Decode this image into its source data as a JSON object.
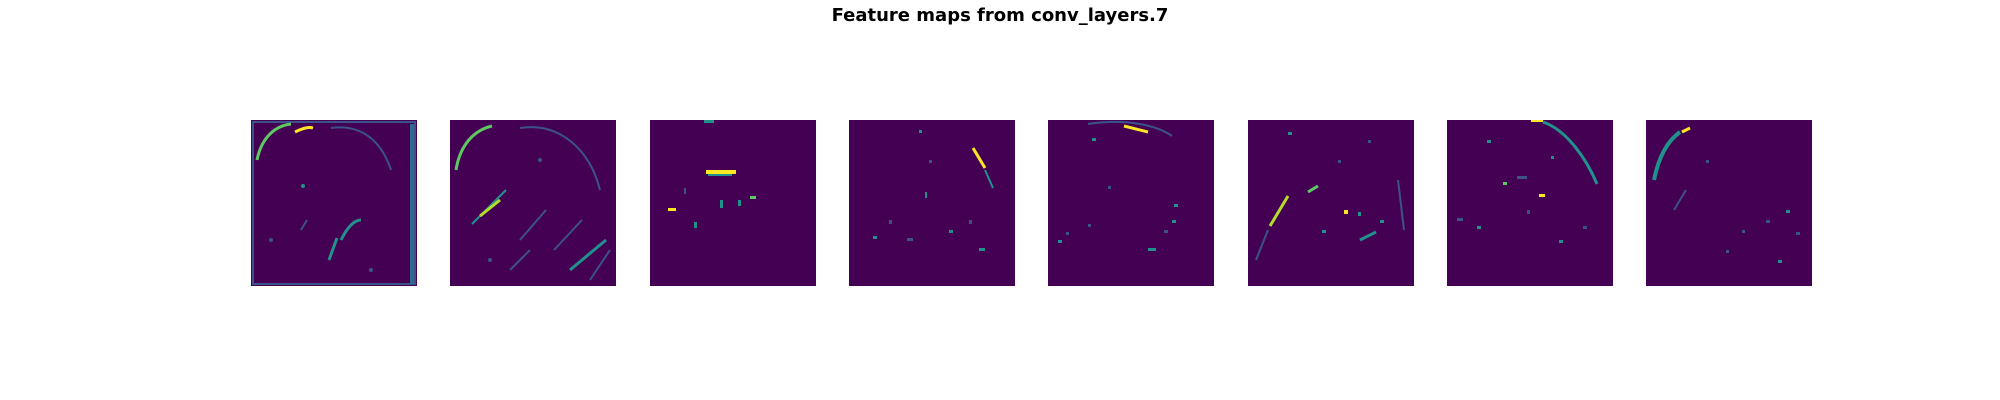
{
  "figure": {
    "title": "Feature maps from conv_layers.7"
  },
  "colormap": {
    "name": "viridis",
    "background": "#440154",
    "low": "#3b528b",
    "mid": "#21918c",
    "high": "#5ec962",
    "peak": "#fde725"
  },
  "panels": [
    {
      "name": "feature-map-1"
    },
    {
      "name": "feature-map-2"
    },
    {
      "name": "feature-map-3"
    },
    {
      "name": "feature-map-4"
    },
    {
      "name": "feature-map-5"
    },
    {
      "name": "feature-map-6"
    },
    {
      "name": "feature-map-7"
    },
    {
      "name": "feature-map-8"
    }
  ]
}
